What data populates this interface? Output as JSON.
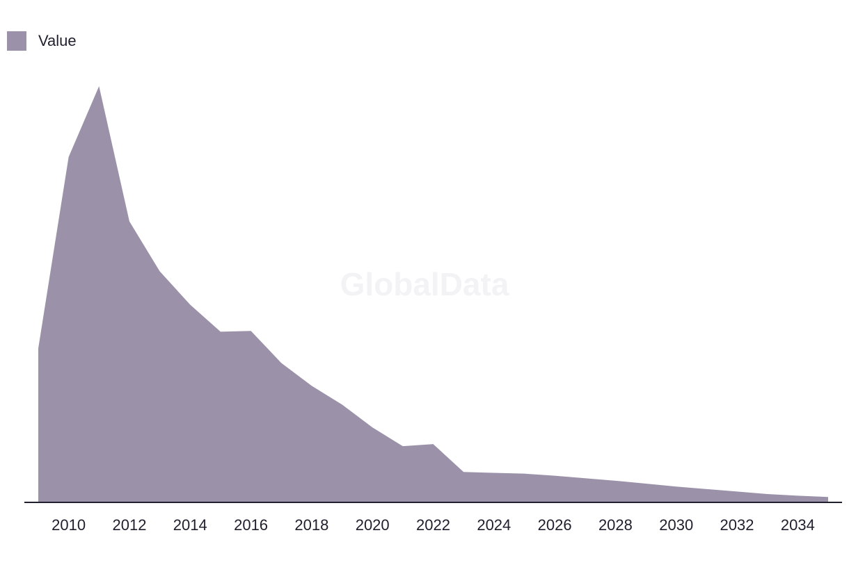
{
  "colors": {
    "area": "#9b92aa",
    "axis": "#1f1f2e",
    "text": "#1f1f2e"
  },
  "watermark": "GlobalData",
  "chart_data": {
    "type": "area",
    "title": "",
    "xlabel": "",
    "ylabel": "",
    "legend": {
      "position": "top-left",
      "label": "Value"
    },
    "x": [
      2009,
      2010,
      2011,
      2012,
      2013,
      2014,
      2015,
      2016,
      2017,
      2018,
      2019,
      2020,
      2021,
      2022,
      2023,
      2024,
      2025,
      2026,
      2027,
      2028,
      2029,
      2030,
      2031,
      2032,
      2033,
      2034,
      2035
    ],
    "series": [
      {
        "name": "Value",
        "values": [
          37.0,
          83.0,
          100.0,
          67.5,
          55.5,
          47.5,
          41.0,
          41.2,
          33.5,
          28.0,
          23.5,
          18.0,
          13.5,
          14.0,
          7.3,
          7.1,
          6.9,
          6.4,
          5.8,
          5.2,
          4.5,
          3.8,
          3.2,
          2.6,
          2.0,
          1.6,
          1.3
        ]
      }
    ],
    "ylim": [
      0,
      100
    ],
    "xticks": [
      "2010",
      "2012",
      "2014",
      "2016",
      "2018",
      "2020",
      "2022",
      "2024",
      "2026",
      "2028",
      "2030",
      "2032",
      "2034"
    ],
    "grid": false
  }
}
